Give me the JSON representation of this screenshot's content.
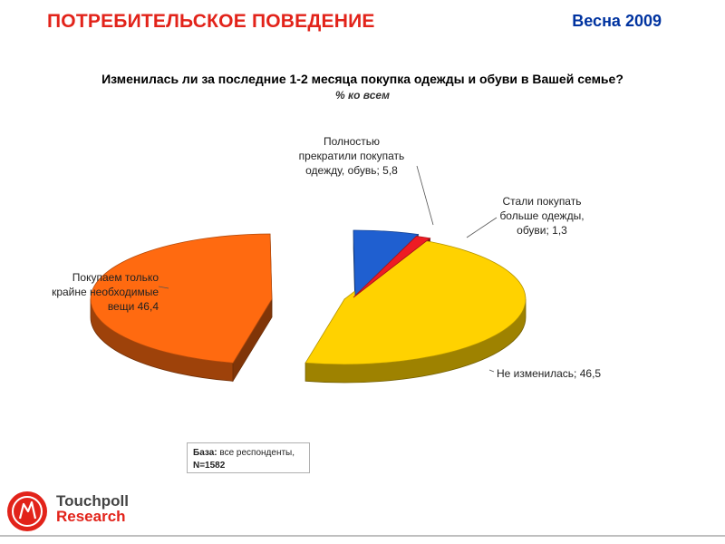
{
  "header": {
    "title": "ПОТРЕБИТЕЛЬСКОЕ ПОВЕДЕНИЕ",
    "season": "Весна 2009"
  },
  "chart_data": {
    "type": "pie",
    "title": "Изменилась ли за последние 1-2 месяца покупка одежды и обуви в Вашей семье?",
    "subtitle": "% ко всем",
    "slices": [
      {
        "label_lines": [
          "Не изменилась; 46,5"
        ],
        "value": 46.5,
        "color": "#ffd200"
      },
      {
        "label_lines": [
          "Покупаем только",
          "крайне необходимые",
          "вещи 46,4"
        ],
        "value": 46.4,
        "color": "#ff6a10"
      },
      {
        "label_lines": [
          "Полностью",
          "прекратили покупать",
          "одежду, обувь; 5,8"
        ],
        "value": 5.8,
        "color": "#1f5fd0"
      },
      {
        "label_lines": [
          "Стали покупать",
          "больше одежды,",
          "обуви; 1,3"
        ],
        "value": 1.3,
        "color": "#ee1c24"
      }
    ]
  },
  "base": {
    "label": "База:",
    "text": " все респонденты, ",
    "n": "N=1582"
  },
  "logo": {
    "line1": "Touchpoll",
    "line2": "Research"
  }
}
